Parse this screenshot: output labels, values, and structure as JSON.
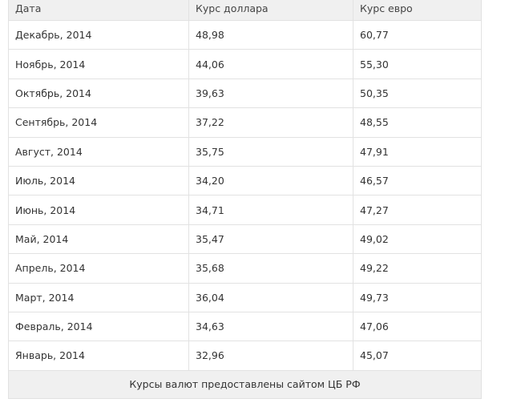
{
  "table": {
    "header": [
      "Дата",
      "Курс доллара",
      "Курс евро"
    ],
    "rows": [
      [
        "Декабрь, 2014",
        "48,98",
        "60,77"
      ],
      [
        "Ноябрь, 2014",
        "44,06",
        "55,30"
      ],
      [
        "Октябрь, 2014",
        "39,63",
        "50,35"
      ],
      [
        "Сентябрь, 2014",
        "37,22",
        "48,55"
      ],
      [
        "Август, 2014",
        "35,75",
        "47,91"
      ],
      [
        "Июль, 2014",
        "34,20",
        "46,57"
      ],
      [
        "Июнь, 2014",
        "34,71",
        "47,27"
      ],
      [
        "Май, 2014",
        "35,47",
        "49,02"
      ],
      [
        "Апрель, 2014",
        "35,68",
        "49,22"
      ],
      [
        "Март, 2014",
        "36,04",
        "49,73"
      ],
      [
        "Февраль, 2014",
        "34,63",
        "47,06"
      ],
      [
        "Январь, 2014",
        "32,96",
        "45,07"
      ]
    ],
    "footer": "Курсы валют предоставлены сайтом ЦБ РФ"
  }
}
